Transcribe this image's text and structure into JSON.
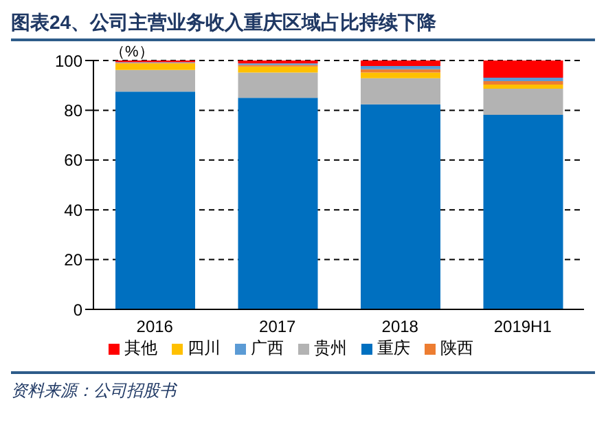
{
  "chart_data": {
    "type": "bar",
    "title": "图表24、公司主营业务收入重庆区域占比持续下降",
    "ylabel": "（%）",
    "annotations": [
      "资料来源：公司招股书"
    ],
    "categories": [
      "2016",
      "2017",
      "2018",
      "2019H1"
    ],
    "stacked": true,
    "series": [
      {
        "name": "重庆",
        "color": "#0070c0",
        "values": [
          87.5,
          85,
          82.4,
          78.2
        ]
      },
      {
        "name": "贵州",
        "color": "#b3b3b3",
        "values": [
          8.7,
          10.2,
          10.5,
          10.5
        ]
      },
      {
        "name": "四川",
        "color": "#ffc000",
        "values": [
          2.6,
          2.4,
          2.3,
          1.6
        ]
      },
      {
        "name": "陕西",
        "color": "#ed7d31",
        "values": [
          0.3,
          0.6,
          1.3,
          1.4
        ]
      },
      {
        "name": "广西",
        "color": "#5b9bd5",
        "values": [
          0.3,
          0.6,
          1.3,
          1.4
        ]
      },
      {
        "name": "其他",
        "color": "#ff0000",
        "values": [
          0.6,
          1.2,
          2.2,
          6.9
        ]
      }
    ],
    "ylim": [
      0,
      100
    ],
    "yticks": [
      0,
      20,
      40,
      60,
      80,
      100
    ],
    "grid": "y",
    "legend": "bottom"
  }
}
